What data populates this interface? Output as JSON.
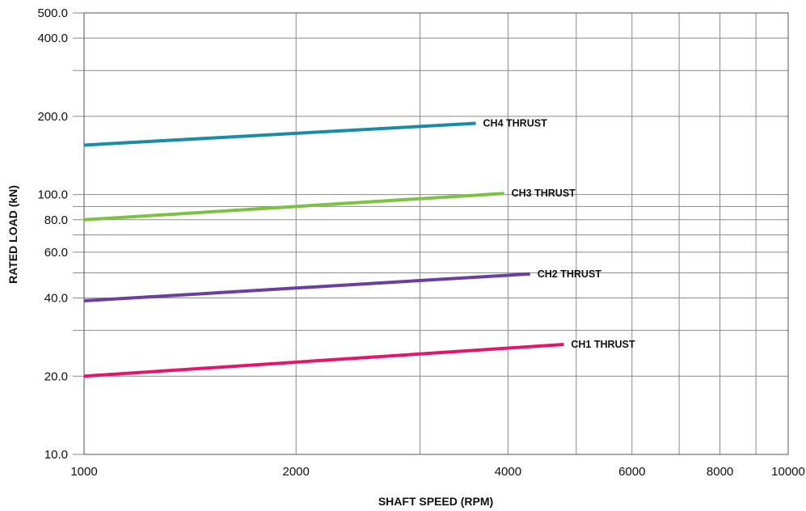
{
  "chart_data": {
    "type": "line",
    "title": "",
    "xlabel": "SHAFT SPEED (RPM)",
    "ylabel": "RATED LOAD (kN)",
    "x_scale": "log",
    "y_scale": "log",
    "xlim": [
      1000,
      10000
    ],
    "ylim": [
      10,
      500
    ],
    "grid": true,
    "legend": "none",
    "x_ticks": [
      {
        "value": 1000,
        "label": "1000"
      },
      {
        "value": 2000,
        "label": "2000"
      },
      {
        "value": 4000,
        "label": "4000"
      },
      {
        "value": 6000,
        "label": "6000"
      },
      {
        "value": 8000,
        "label": "8000"
      },
      {
        "value": 10000,
        "label": "10000"
      }
    ],
    "x_gridlines": [
      1000,
      2000,
      3000,
      4000,
      5000,
      6000,
      7000,
      8000,
      9000,
      10000
    ],
    "y_ticks": [
      {
        "value": 10,
        "label": "10.0"
      },
      {
        "value": 20,
        "label": "20.0"
      },
      {
        "value": 40,
        "label": "40.0"
      },
      {
        "value": 60,
        "label": "60.0"
      },
      {
        "value": 80,
        "label": "80.0"
      },
      {
        "value": 100,
        "label": "100.0"
      },
      {
        "value": 200,
        "label": "200.0"
      },
      {
        "value": 400,
        "label": "400.0"
      },
      {
        "value": 500,
        "label": "500.0"
      }
    ],
    "y_gridlines": [
      10,
      20,
      30,
      40,
      50,
      60,
      70,
      80,
      90,
      100,
      200,
      300,
      400,
      500
    ],
    "series": [
      {
        "name": "CH4 THRUST",
        "color": "#1a8ca8",
        "x": [
          1000,
          3600
        ],
        "y": [
          155,
          188
        ]
      },
      {
        "name": "CH3 THRUST",
        "color": "#7cc243",
        "x": [
          1000,
          3950
        ],
        "y": [
          80,
          101
        ]
      },
      {
        "name": "CH2 THRUST",
        "color": "#6b3fa0",
        "x": [
          1000,
          4300
        ],
        "y": [
          39,
          49.5
        ]
      },
      {
        "name": "CH1 THRUST",
        "color": "#e8146a",
        "x": [
          1000,
          4800
        ],
        "y": [
          20,
          26.5
        ]
      }
    ]
  }
}
